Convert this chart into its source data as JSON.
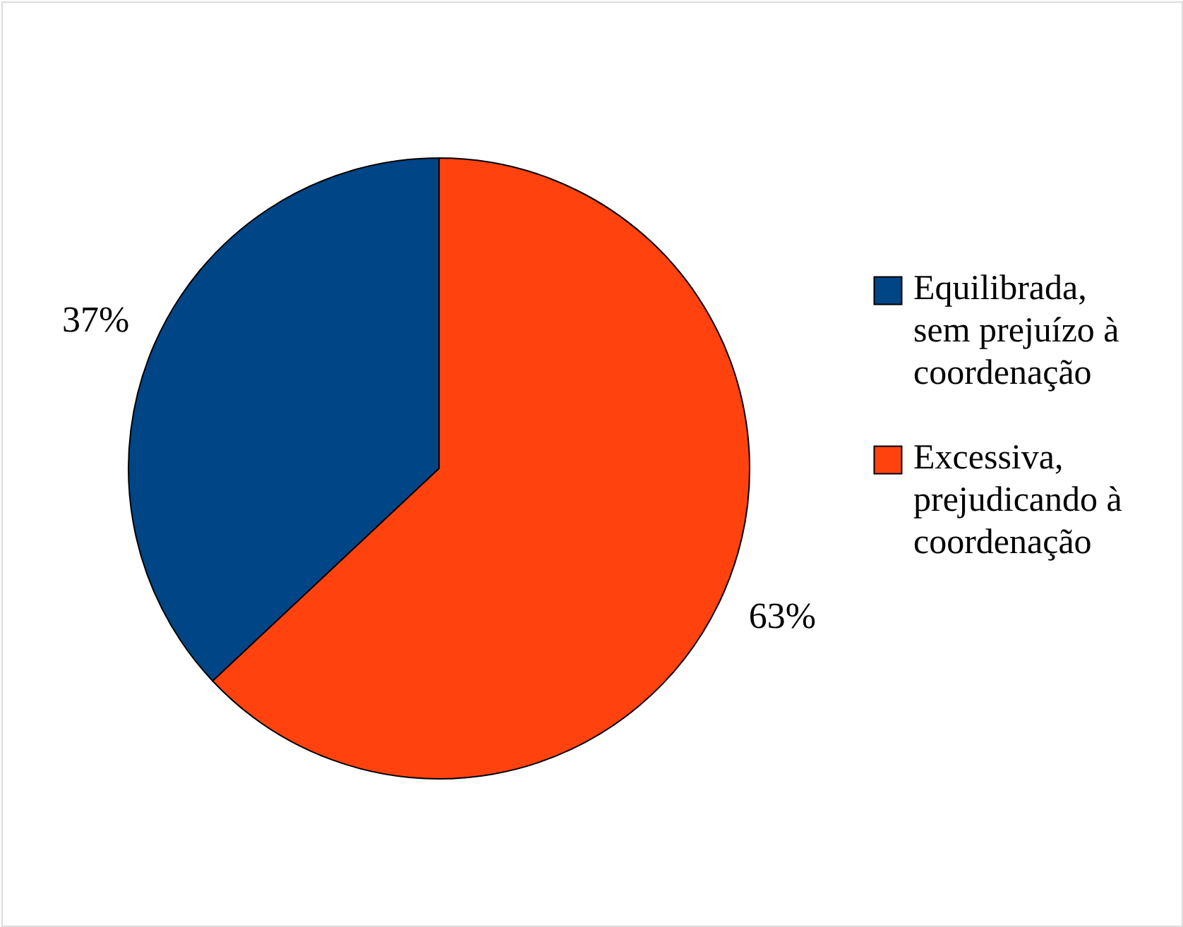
{
  "chart_data": {
    "type": "pie",
    "categories": [
      "Equilibrada, sem prejuízo à coordenação",
      "Excessiva, prejudicando à coordenação"
    ],
    "values": [
      37,
      63
    ],
    "colors": [
      "#004586",
      "#ff420e"
    ],
    "value_labels": [
      "37%",
      "63%"
    ],
    "legend": "right"
  }
}
